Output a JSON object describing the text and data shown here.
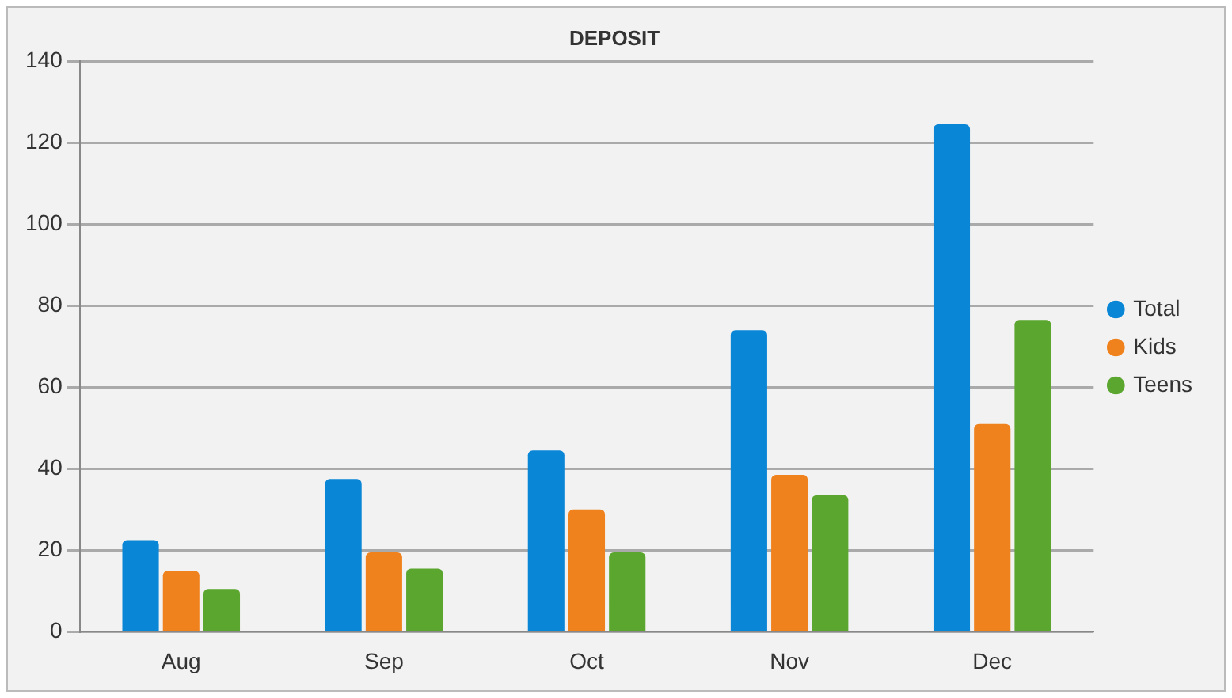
{
  "chart_data": {
    "type": "bar",
    "title": "DEPOSIT",
    "categories": [
      "Aug",
      "Sep",
      "Oct",
      "Nov",
      "Dec"
    ],
    "series": [
      {
        "name": "Total",
        "color": "#0a86d6",
        "values": [
          22.5,
          37.5,
          44.5,
          74,
          124.5
        ]
      },
      {
        "name": "Kids",
        "color": "#f0821e",
        "values": [
          15,
          19.5,
          30,
          38.5,
          51
        ]
      },
      {
        "name": "Teens",
        "color": "#5aa62e",
        "values": [
          10.5,
          15.5,
          19.5,
          33.5,
          76.5
        ]
      }
    ],
    "ylim": [
      0,
      140
    ],
    "yticks": [
      0,
      20,
      40,
      60,
      80,
      100,
      120,
      140
    ],
    "grid": "y",
    "legend": "right",
    "marker": "circle"
  }
}
